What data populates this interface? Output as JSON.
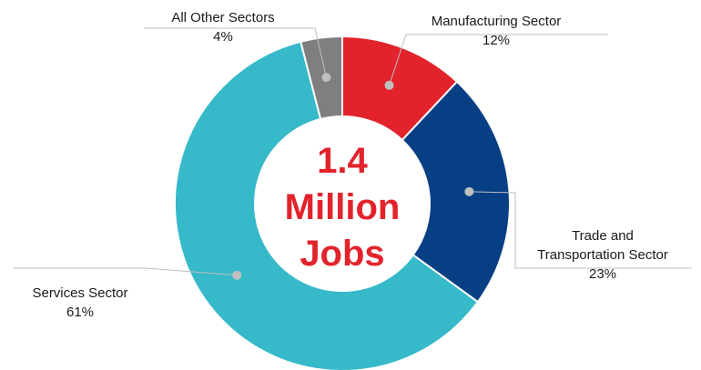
{
  "chart_data": {
    "type": "pie",
    "donut": true,
    "center_text": [
      "1.4",
      "Million",
      "Jobs"
    ],
    "center_color": "#e3232c",
    "slices": [
      {
        "label": "Manufacturing Sector",
        "label_lines": [
          "Manufacturing Sector"
        ],
        "value": 12,
        "value_label": "12%",
        "color": "#e3232c"
      },
      {
        "label": "Trade and Transportation Sector",
        "label_lines": [
          "Trade and",
          "Transportation Sector"
        ],
        "value": 23,
        "value_label": "23%",
        "color": "#073f84"
      },
      {
        "label": "Services Sector",
        "label_lines": [
          "Services Sector"
        ],
        "value": 61,
        "value_label": "61%",
        "color": "#36b9c9"
      },
      {
        "label": "All Other Sectors",
        "label_lines": [
          "All Other Sectors"
        ],
        "value": 4,
        "value_label": "4%",
        "color": "#7f7f7f"
      }
    ]
  }
}
